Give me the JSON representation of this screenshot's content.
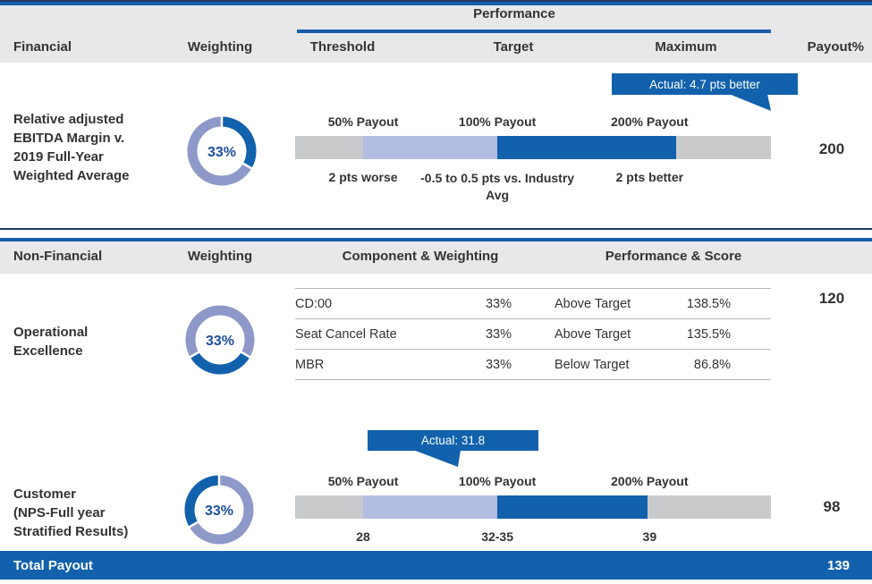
{
  "colors": {
    "accent_blue": "#1161ac",
    "line_blue": "#1a5dab",
    "navy": "#1f3864",
    "lavender": "#b3bce1",
    "bar_gray": "#c9cacc",
    "donut_light": "#8e99c9",
    "header_gray": "#e8e8ea",
    "text": "#333333"
  },
  "header": {
    "performance_group": "Performance",
    "financial": "Financial",
    "weighting": "Weighting",
    "threshold": "Threshold",
    "target": "Target",
    "maximum": "Maximum",
    "payout": "Payout%"
  },
  "financial_row": {
    "label_lines": [
      "Relative adjusted",
      "EBITDA Margin v.",
      "2019 Full-Year",
      "Weighted Average"
    ],
    "weighting": "33%",
    "callout": "Actual: 4.7 pts better",
    "scale_top": [
      "50% Payout",
      "100% Payout",
      "200% Payout"
    ],
    "scale_bottom": [
      "2 pts worse",
      "-0.5 to 0.5 pts vs. Industry Avg",
      "2 pts better"
    ],
    "payout": "200",
    "bar_segments": [
      {
        "color": "#c9cacc",
        "width_pct": 14.3
      },
      {
        "color": "#b3bce1",
        "width_pct": 28.2
      },
      {
        "color": "#1161ac",
        "width_pct": 37.6
      },
      {
        "color": "#c9cacc",
        "width_pct": 19.9
      }
    ]
  },
  "nonfinancial_header": {
    "nonfinancial": "Non-Financial",
    "weighting": "Weighting",
    "component": "Component & Weighting",
    "performance": "Performance & Score"
  },
  "operational_row": {
    "label_lines": [
      "Operational",
      "Excellence"
    ],
    "weighting": "33%",
    "components": [
      {
        "name": "CD:00",
        "weight": "33%",
        "status": "Above Target",
        "score": "138.5%"
      },
      {
        "name": "Seat Cancel Rate",
        "weight": "33%",
        "status": "Above Target",
        "score": "135.5%"
      },
      {
        "name": "MBR",
        "weight": "33%",
        "status": "Below Target",
        "score": "86.8%"
      }
    ],
    "payout": "120"
  },
  "customer_row": {
    "label_lines": [
      "Customer",
      "(NPS-Full year",
      "Stratified Results)"
    ],
    "weighting": "33%",
    "callout": "Actual: 31.8",
    "scale_top": [
      "50% Payout",
      "100% Payout",
      "200% Payout"
    ],
    "scale_bottom": [
      "28",
      "32-35",
      "39"
    ],
    "payout": "98",
    "bar_segments": [
      {
        "color": "#c9cacc",
        "width_pct": 14.3
      },
      {
        "color": "#b3bce1",
        "width_pct": 28.2
      },
      {
        "color": "#1161ac",
        "width_pct": 31.5
      },
      {
        "color": "#c9cacc",
        "width_pct": 26.0
      }
    ]
  },
  "total": {
    "label": "Total Payout",
    "value": "139"
  },
  "chart_data": [
    {
      "type": "bar",
      "section": "Financial",
      "title": "Relative adjusted EBITDA Margin v. 2019 Full-Year Weighted Average",
      "weighting_pct": 33,
      "scale": {
        "threshold": {
          "payout": "50% Payout",
          "value": "2 pts worse"
        },
        "target": {
          "payout": "100% Payout",
          "value": "-0.5 to 0.5 pts vs. Industry Avg"
        },
        "maximum": {
          "payout": "200% Payout",
          "value": "2 pts better"
        }
      },
      "actual": "4.7 pts better",
      "payout_pct": 200
    },
    {
      "type": "table",
      "section": "Non-Financial",
      "title": "Operational Excellence",
      "weighting_pct": 33,
      "columns": [
        "Component",
        "Weighting",
        "Performance",
        "Score"
      ],
      "rows": [
        [
          "CD:00",
          "33%",
          "Above Target",
          "138.5%"
        ],
        [
          "Seat Cancel Rate",
          "33%",
          "Above Target",
          "135.5%"
        ],
        [
          "MBR",
          "33%",
          "Below Target",
          "86.8%"
        ]
      ],
      "payout_pct": 120
    },
    {
      "type": "bar",
      "section": "Non-Financial",
      "title": "Customer (NPS-Full year Stratified Results)",
      "weighting_pct": 33,
      "scale": {
        "threshold": {
          "payout": "50% Payout",
          "value": "28"
        },
        "target": {
          "payout": "100% Payout",
          "value": "32-35"
        },
        "maximum": {
          "payout": "200% Payout",
          "value": "39"
        }
      },
      "actual": "31.8",
      "payout_pct": 98
    },
    {
      "type": "pie",
      "title": "Weightings",
      "categories": [
        "Financial EBITDA Margin",
        "Operational Excellence",
        "Customer NPS"
      ],
      "values": [
        33,
        33,
        33
      ]
    },
    {
      "type": "table",
      "title": "Total Payout",
      "values": [
        139
      ]
    }
  ]
}
